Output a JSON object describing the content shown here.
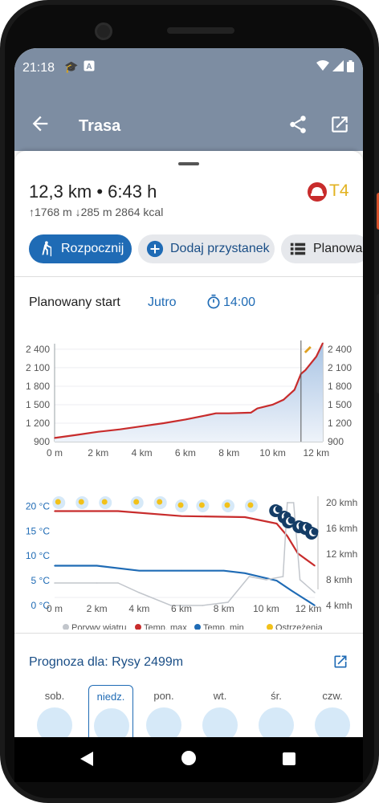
{
  "status_bar": {
    "time": "21:18"
  },
  "app_bar": {
    "title": "Trasa"
  },
  "route": {
    "summary": "12,3 km • 6:43 h",
    "stats": "↑1768 m ↓285 m  2864 kcal",
    "difficulty": "T4",
    "difficulty_color": "#e2b21f"
  },
  "actions": {
    "start": "Rozpocznij",
    "add_stop": "Dodaj przystanek",
    "plan": "Planowanie"
  },
  "planned_start": {
    "label": "Planowany start",
    "day": "Jutro",
    "time": "14:00"
  },
  "elevation_chart": {
    "y_ticks": [
      "900",
      "1 200",
      "1 500",
      "1 800",
      "2 100",
      "2 400"
    ],
    "x_ticks": [
      "0 m",
      "2 km",
      "4 km",
      "6 km",
      "8 km",
      "10 km",
      "12 km"
    ]
  },
  "weather_chart": {
    "y_left": [
      "0 °C",
      "5 °C",
      "10 °C",
      "15 °C",
      "20 °C"
    ],
    "y_right": [
      "4 kmh",
      "8 kmh",
      "12 kmh",
      "16 kmh",
      "20 kmh"
    ],
    "x_ticks": [
      "0 m",
      "2 km",
      "4 km",
      "6 km",
      "8 km",
      "10 km",
      "12 km"
    ],
    "legend": [
      {
        "label": "Porywy wiatru",
        "color": "#c2c6cc"
      },
      {
        "label": "Temp. max",
        "color": "#c82c2c"
      },
      {
        "label": "Temp. min",
        "color": "#1f6bb5"
      },
      {
        "label": "Ostrzeżenia",
        "color": "#f2c11a"
      }
    ]
  },
  "chart_data": [
    {
      "type": "area",
      "xlabel": "",
      "ylabel": "",
      "xlim": [
        0,
        12.3
      ],
      "ylim": [
        900,
        2490
      ],
      "x": [
        0,
        1,
        2,
        3,
        4,
        5,
        6,
        7,
        7.4,
        8,
        9,
        9.3,
        10,
        10.5,
        11,
        11.3,
        11.5,
        12,
        12.3
      ],
      "y": [
        960,
        1010,
        1060,
        1100,
        1150,
        1200,
        1260,
        1330,
        1360,
        1360,
        1370,
        1440,
        1500,
        1580,
        1740,
        2000,
        2060,
        2280,
        2499
      ],
      "series": [
        {
          "values": [
            960,
            1010,
            1060,
            1100,
            1150,
            1200,
            1260,
            1330,
            1360,
            1360,
            1370,
            1440,
            1500,
            1580,
            1740,
            2000,
            2060,
            2280,
            2499
          ],
          "color": "#c82c2c"
        }
      ],
      "marker_x": 11.3
    },
    {
      "type": "line",
      "xlim": [
        0,
        12.3
      ],
      "y_left_lim": [
        0,
        22
      ],
      "y_right_lim": [
        4,
        21
      ],
      "series": [
        {
          "name": "Temp. max",
          "axis": "left",
          "color": "#c82c2c",
          "x": [
            0,
            3,
            6,
            9,
            10.5,
            11,
            11.5,
            12.3
          ],
          "values": [
            19,
            19,
            18,
            17.8,
            16.5,
            14,
            10.5,
            8
          ]
        },
        {
          "name": "Temp. min",
          "axis": "left",
          "color": "#1f6bb5",
          "x": [
            0,
            2,
            4,
            6,
            8,
            9,
            10.5,
            11.2,
            12.3
          ],
          "values": [
            8,
            8,
            7,
            7,
            7,
            6.5,
            5,
            3,
            0
          ]
        },
        {
          "name": "Porywy wiatru",
          "axis": "right",
          "color": "#c2c6cc",
          "x": [
            0,
            2,
            3,
            4,
            5.5,
            7,
            8.2,
            9.2,
            10,
            10.8,
            11,
            11.3,
            11.6,
            12.3
          ],
          "values": [
            7.5,
            7.5,
            7.5,
            6,
            4,
            4,
            4.5,
            8.5,
            8,
            8.5,
            20,
            20,
            8,
            6
          ]
        }
      ]
    }
  ],
  "forecast": {
    "link": "Prognoza dla: Rysy 2499m",
    "days": [
      "sob.",
      "niedz.",
      "pon.",
      "wt.",
      "śr.",
      "czw."
    ]
  }
}
